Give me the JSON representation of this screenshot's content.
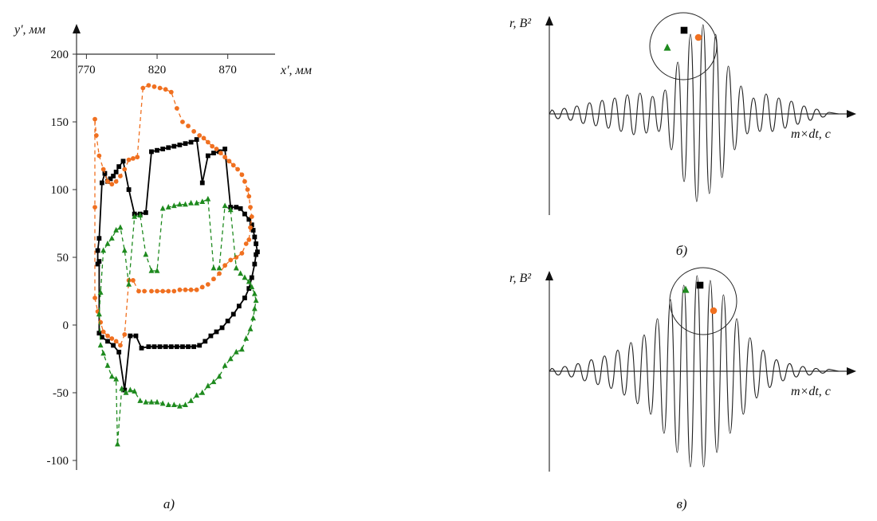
{
  "panels": {
    "a_label": "а)",
    "b_label": "б)",
    "c_label": "в)"
  },
  "chart_data": [
    {
      "type": "line",
      "panel": "а)",
      "title": "",
      "xlabel": "x', мм",
      "ylabel": "y', мм",
      "x_ticks": [
        770,
        820,
        870
      ],
      "y_ticks": [
        200,
        150,
        100,
        50,
        0,
        -50,
        -100
      ],
      "xlim": [
        763,
        895
      ],
      "ylim": [
        -100,
        200
      ],
      "grid": false,
      "legend": "none",
      "series": [
        {
          "color": "#000000",
          "style": "solid",
          "marker": "square",
          "x": [
            779,
            781,
            785,
            789,
            793,
            797,
            801,
            805,
            809,
            814,
            818,
            822,
            826,
            830,
            834,
            838,
            842,
            846,
            850,
            854,
            858,
            862,
            866,
            870,
            874,
            878,
            882,
            885,
            887,
            889,
            890,
            891,
            890,
            889,
            888,
            887,
            885,
            882,
            879,
            876,
            872,
            868,
            864,
            860,
            856,
            852,
            848,
            844,
            840,
            836,
            832,
            828,
            824,
            820,
            816,
            812,
            808,
            804,
            800,
            796,
            793,
            791,
            789,
            787,
            785,
            783,
            781,
            779,
            778,
            778,
            779
          ],
          "y": [
            -6,
            -9,
            -12,
            -15,
            -20,
            -48,
            -8,
            -8,
            -17,
            -16,
            -16,
            -16,
            -16,
            -16,
            -16,
            -16,
            -16,
            -16,
            -15,
            -12,
            -8,
            -5,
            -2,
            3,
            8,
            14,
            20,
            27,
            35,
            45,
            52,
            54,
            60,
            65,
            70,
            74,
            78,
            82,
            86,
            87,
            87,
            130,
            128,
            127,
            125,
            105,
            137,
            135,
            134,
            133,
            132,
            131,
            130,
            129,
            128,
            83,
            82,
            82,
            100,
            121,
            117,
            113,
            110,
            108,
            106,
            112,
            105,
            64,
            55,
            45,
            47
          ]
        },
        {
          "color": "#f07020",
          "style": "dashed",
          "marker": "circle",
          "x": [
            776,
            778,
            780,
            782,
            785,
            788,
            791,
            794,
            797,
            800,
            803,
            807,
            811,
            816,
            820,
            824,
            828,
            832,
            836,
            840,
            844,
            848,
            852,
            856,
            860,
            864,
            868,
            872,
            876,
            880,
            883,
            885,
            886,
            887,
            886,
            885,
            884,
            882,
            880,
            877,
            874,
            871,
            868,
            865,
            862,
            859,
            856,
            853,
            850,
            846,
            842,
            838,
            834,
            830,
            826,
            822,
            818,
            814,
            810,
            806,
            803,
            800,
            797,
            794,
            791,
            788,
            785,
            782,
            779,
            777,
            776,
            776
          ],
          "y": [
            20,
            10,
            2,
            -5,
            -8,
            -10,
            -12,
            -15,
            -7,
            33,
            33,
            25,
            25,
            25,
            25,
            25,
            25,
            25,
            26,
            26,
            26,
            26,
            28,
            30,
            34,
            38,
            44,
            48,
            50,
            53,
            60,
            63,
            72,
            80,
            87,
            95,
            100,
            106,
            111,
            115,
            118,
            121,
            124,
            127,
            130,
            132,
            135,
            138,
            140,
            143,
            147,
            150,
            160,
            172,
            174,
            175,
            176,
            177,
            175,
            124,
            123,
            122,
            115,
            110,
            106,
            104,
            106,
            115,
            125,
            140,
            152,
            87
          ]
        },
        {
          "color": "#1e8a1e",
          "style": "dashed",
          "marker": "triangle",
          "x": [
            779,
            780,
            782,
            785,
            788,
            791,
            792,
            795,
            798,
            801,
            804,
            808,
            812,
            816,
            820,
            824,
            828,
            832,
            836,
            840,
            844,
            848,
            852,
            856,
            860,
            864,
            868,
            872,
            876,
            880,
            883,
            886,
            888,
            889,
            890,
            889,
            887,
            885,
            882,
            879,
            876,
            872,
            868,
            864,
            860,
            856,
            852,
            848,
            844,
            840,
            836,
            832,
            828,
            824,
            820,
            816,
            812,
            808,
            804,
            800,
            797,
            794,
            791,
            788,
            785,
            782,
            780,
            779
          ],
          "y": [
            8,
            -15,
            -21,
            -30,
            -38,
            -40,
            -88,
            -47,
            -50,
            -48,
            -49,
            -56,
            -57,
            -57,
            -57,
            -58,
            -59,
            -59,
            -60,
            -59,
            -56,
            -52,
            -50,
            -45,
            -42,
            -38,
            -30,
            -25,
            -20,
            -18,
            -10,
            -3,
            5,
            12,
            18,
            23,
            28,
            32,
            35,
            38,
            42,
            85,
            88,
            42,
            42,
            93,
            91,
            90,
            90,
            89,
            89,
            88,
            87,
            86,
            40,
            40,
            52,
            81,
            80,
            30,
            55,
            72,
            70,
            64,
            60,
            55,
            24,
            8
          ]
        }
      ]
    },
    {
      "type": "line",
      "panel": "б)",
      "title": "",
      "xlabel": "m×dt, с",
      "ylabel": "r, В²",
      "grid": false,
      "legend": "none",
      "values_relative": [
        0.05,
        -0.06,
        0.07,
        -0.08,
        0.1,
        -0.12,
        0.14,
        -0.15,
        0.17,
        -0.18,
        0.2,
        -0.22,
        0.24,
        -0.26,
        0.26,
        -0.24,
        0.22,
        -0.22,
        0.3,
        -0.45,
        0.65,
        -0.85,
        1.0,
        -1.1,
        1.12,
        -1.0,
        1.0,
        -0.8,
        0.6,
        -0.45,
        0.35,
        -0.25,
        0.2,
        -0.22,
        0.25,
        -0.22,
        0.2,
        -0.18,
        0.16,
        -0.13,
        0.1,
        -0.08,
        0.06,
        -0.04,
        0.02
      ],
      "markers": [
        "triangle",
        "square",
        "circle"
      ]
    },
    {
      "type": "line",
      "panel": "в)",
      "title": "",
      "xlabel": "m×dt, с",
      "ylabel": "r, В²",
      "grid": false,
      "legend": "none",
      "values_relative": [
        0.03,
        -0.04,
        0.05,
        -0.06,
        0.08,
        -0.1,
        0.12,
        -0.14,
        0.16,
        -0.18,
        0.22,
        -0.25,
        0.3,
        -0.34,
        0.38,
        -0.45,
        0.55,
        -0.65,
        0.75,
        -0.85,
        0.9,
        -1.0,
        1.0,
        -1.0,
        0.95,
        -0.85,
        0.8,
        -0.65,
        0.55,
        -0.45,
        0.35,
        -0.28,
        0.22,
        -0.17,
        0.12,
        -0.1,
        0.08,
        -0.06,
        0.05,
        -0.04,
        0.03,
        -0.02,
        0.02
      ],
      "markers": [
        "triangle",
        "square",
        "circle"
      ]
    }
  ]
}
